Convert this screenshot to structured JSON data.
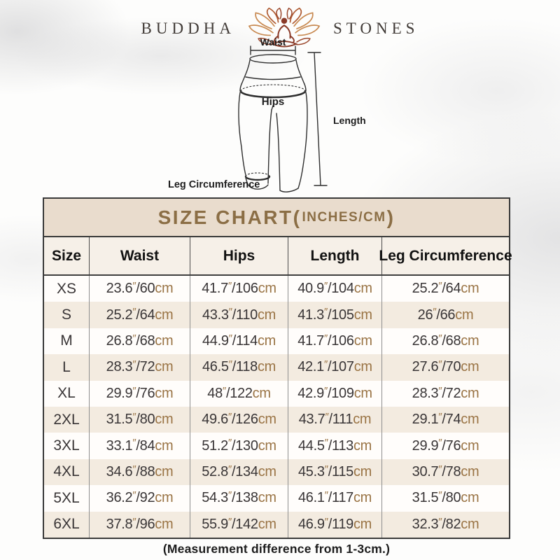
{
  "brand": {
    "left": "BUDDHA",
    "right": "STONES"
  },
  "diagram": {
    "waist_label": "Waist",
    "hips_label": "Hips",
    "length_label": "Length",
    "leg_label": "Leg Circumference"
  },
  "table": {
    "title_prefix": "SIZE CHART(",
    "title_small": "INCHES/CM",
    "title_suffix": ")",
    "columns": [
      "Size",
      "Waist",
      "Hips",
      "Length",
      "Leg Circumference"
    ],
    "unit_inch_mark": "″",
    "unit_cm": "cm",
    "rows": [
      {
        "size": "XS",
        "waist": [
          "23.6",
          "60"
        ],
        "hips": [
          "41.7",
          "106"
        ],
        "length": [
          "40.9",
          "104"
        ],
        "leg": [
          "25.2",
          "64"
        ]
      },
      {
        "size": "S",
        "waist": [
          "25.2",
          "64"
        ],
        "hips": [
          "43.3",
          "110"
        ],
        "length": [
          "41.3",
          "105"
        ],
        "leg": [
          "26",
          "66"
        ]
      },
      {
        "size": "M",
        "waist": [
          "26.8",
          "68"
        ],
        "hips": [
          "44.9",
          "114"
        ],
        "length": [
          "41.7",
          "106"
        ],
        "leg": [
          "26.8",
          "68"
        ]
      },
      {
        "size": "L",
        "waist": [
          "28.3",
          "72"
        ],
        "hips": [
          "46.5",
          "118"
        ],
        "length": [
          "42.1",
          "107"
        ],
        "leg": [
          "27.6",
          "70"
        ]
      },
      {
        "size": "XL",
        "waist": [
          "29.9",
          "76"
        ],
        "hips": [
          "48",
          "122"
        ],
        "length": [
          "42.9",
          "109"
        ],
        "leg": [
          "28.3",
          "72"
        ]
      },
      {
        "size": "2XL",
        "waist": [
          "31.5",
          "80"
        ],
        "hips": [
          "49.6",
          "126"
        ],
        "length": [
          "43.7",
          "111"
        ],
        "leg": [
          "29.1",
          "74"
        ]
      },
      {
        "size": "3XL",
        "waist": [
          "33.1",
          "84"
        ],
        "hips": [
          "51.2",
          "130"
        ],
        "length": [
          "44.5",
          "113"
        ],
        "leg": [
          "29.9",
          "76"
        ]
      },
      {
        "size": "4XL",
        "waist": [
          "34.6",
          "88"
        ],
        "hips": [
          "52.8",
          "134"
        ],
        "length": [
          "45.3",
          "115"
        ],
        "leg": [
          "30.7",
          "78"
        ]
      },
      {
        "size": "5XL",
        "waist": [
          "36.2",
          "92"
        ],
        "hips": [
          "54.3",
          "138"
        ],
        "length": [
          "46.1",
          "117"
        ],
        "leg": [
          "31.5",
          "80"
        ]
      },
      {
        "size": "6XL",
        "waist": [
          "37.8",
          "96"
        ],
        "hips": [
          "55.9",
          "142"
        ],
        "length": [
          "46.9",
          "119"
        ],
        "leg": [
          "32.3",
          "82"
        ]
      }
    ],
    "footnote": "(Measurement difference from 1-3cm.)"
  },
  "colors": {
    "accent": "#9a7445",
    "title-color": "#8b6e45",
    "band-bg": "#e9dccd",
    "colhdr-bg": "#f6f0e8",
    "stripe-bg": "#f3ebe0",
    "num-color": "#393536",
    "brand-text": "#413b37",
    "lotus-dark": "#8a3a28",
    "lotus-mid": "#b05c33",
    "lotus-light": "#c88a52"
  }
}
